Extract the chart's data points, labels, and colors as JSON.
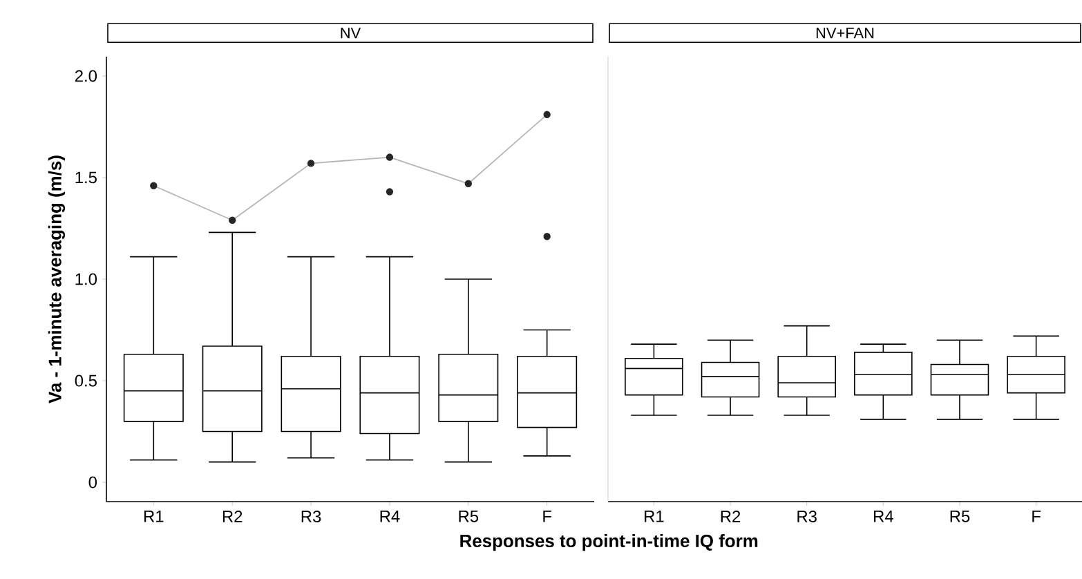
{
  "chart_data": [
    {
      "type": "box",
      "title": "NV",
      "xlabel": "Responses to point-in-time IQ form",
      "ylabel": "Va - 1-minute averaging (m/s)",
      "categories": [
        "R1",
        "R2",
        "R3",
        "R4",
        "R5",
        "F"
      ],
      "ylim": [
        -0.095,
        2.095
      ],
      "yticks": [
        0,
        {
          "value": 0.5,
          "label": "0.5"
        },
        {
          "value": 1,
          "label": "1.0"
        },
        {
          "value": 1.5,
          "label": "1.5"
        },
        {
          "value": 2,
          "label": "2.0"
        }
      ],
      "color": "#000000",
      "boxes": [
        {
          "low": 0.11,
          "q1": 0.3,
          "median": 0.45,
          "q3": 0.63,
          "high": 1.11,
          "outliers": [
            1.46
          ]
        },
        {
          "low": 0.1,
          "q1": 0.25,
          "median": 0.45,
          "q3": 0.67,
          "high": 1.23,
          "outliers": [
            1.29
          ]
        },
        {
          "low": 0.12,
          "q1": 0.25,
          "median": 0.46,
          "q3": 0.62,
          "high": 1.11,
          "outliers": [
            1.57
          ]
        },
        {
          "low": 0.11,
          "q1": 0.24,
          "median": 0.44,
          "q3": 0.62,
          "high": 1.11,
          "outliers": [
            1.6,
            1.43
          ]
        },
        {
          "low": 0.1,
          "q1": 0.3,
          "median": 0.43,
          "q3": 0.63,
          "high": 1.0,
          "outliers": [
            1.47
          ]
        },
        {
          "low": 0.13,
          "q1": 0.27,
          "median": 0.44,
          "q3": 0.62,
          "high": 0.75,
          "outliers": [
            1.81,
            1.21
          ]
        }
      ],
      "series": [
        {
          "type": "line",
          "color": "#b5b5b5",
          "values": [
            1.46,
            1.29,
            1.57,
            1.6,
            1.47,
            1.81
          ]
        }
      ]
    },
    {
      "type": "box",
      "title": "NV+FAN",
      "categories": [
        "R1",
        "R2",
        "R3",
        "R4",
        "R5",
        "F"
      ],
      "ylim": [
        -0.095,
        2.095
      ],
      "yticks": [
        0,
        0.5,
        1,
        1.5,
        2
      ],
      "tick_labels": "x",
      "color": "#000000",
      "boxes": [
        {
          "low": 0.33,
          "q1": 0.43,
          "median": 0.56,
          "q3": 0.61,
          "high": 0.68
        },
        {
          "low": 0.33,
          "q1": 0.42,
          "median": 0.52,
          "q3": 0.59,
          "high": 0.7
        },
        {
          "low": 0.33,
          "q1": 0.42,
          "median": 0.49,
          "q3": 0.62,
          "high": 0.77
        },
        {
          "low": 0.31,
          "q1": 0.43,
          "median": 0.53,
          "q3": 0.64,
          "high": 0.68
        },
        {
          "low": 0.31,
          "q1": 0.43,
          "median": 0.53,
          "q3": 0.58,
          "high": 0.7
        },
        {
          "low": 0.31,
          "q1": 0.44,
          "median": 0.53,
          "q3": 0.62,
          "high": 0.72
        }
      ]
    }
  ]
}
